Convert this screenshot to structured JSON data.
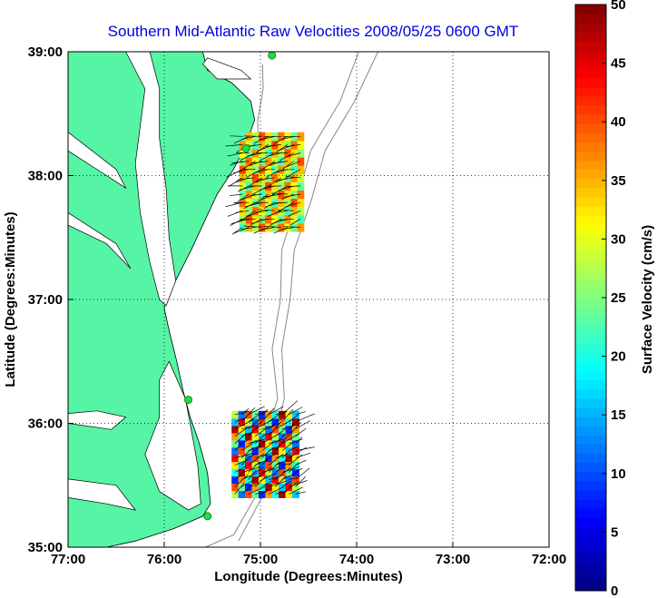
{
  "chart_data": {
    "type": "heatmap",
    "title": "Southern Mid-Atlantic Raw Velocities 2008/05/25 0600 GMT",
    "xlabel": "Longitude (Degrees:Minutes)",
    "ylabel": "Latitude (Degrees:Minutes)",
    "xlim": [
      -77,
      -72
    ],
    "ylim": [
      35,
      39
    ],
    "x_ticks": [
      {
        "value": -77,
        "label": "77:00"
      },
      {
        "value": -76,
        "label": "76:00"
      },
      {
        "value": -75,
        "label": "75:00"
      },
      {
        "value": -74,
        "label": "74:00"
      },
      {
        "value": -73,
        "label": "73:00"
      },
      {
        "value": -72,
        "label": "72:00"
      }
    ],
    "y_ticks": [
      {
        "value": 35,
        "label": "35:00"
      },
      {
        "value": 36,
        "label": "36:00"
      },
      {
        "value": 37,
        "label": "37:00"
      },
      {
        "value": 38,
        "label": "38:00"
      },
      {
        "value": 39,
        "label": "39:00"
      }
    ],
    "grid": "dotted",
    "colorbar": {
      "label": "Surface Velocity (cm/s)",
      "range": [
        0,
        50
      ],
      "ticks": [
        0,
        5,
        10,
        15,
        20,
        25,
        30,
        35,
        40,
        45,
        50
      ],
      "colormap": "jet"
    },
    "land_color": "#55f5a5",
    "sites": [
      {
        "lon": -74.88,
        "lat": 38.97
      },
      {
        "lon": -75.15,
        "lat": 38.22
      },
      {
        "lon": -75.75,
        "lat": 36.19
      },
      {
        "lon": -75.55,
        "lat": 35.25
      }
    ],
    "velocity_regions": [
      {
        "name": "north",
        "lon_range": [
          -75.22,
          -74.55
        ],
        "lat_range": [
          37.55,
          38.35
        ],
        "speed_range": [
          22,
          40
        ],
        "direction_deg": 255
      },
      {
        "name": "south",
        "lon_range": [
          -75.3,
          -74.6
        ],
        "lat_range": [
          35.4,
          36.1
        ],
        "speed_range": [
          8,
          48
        ],
        "direction_deg": 60
      }
    ]
  }
}
